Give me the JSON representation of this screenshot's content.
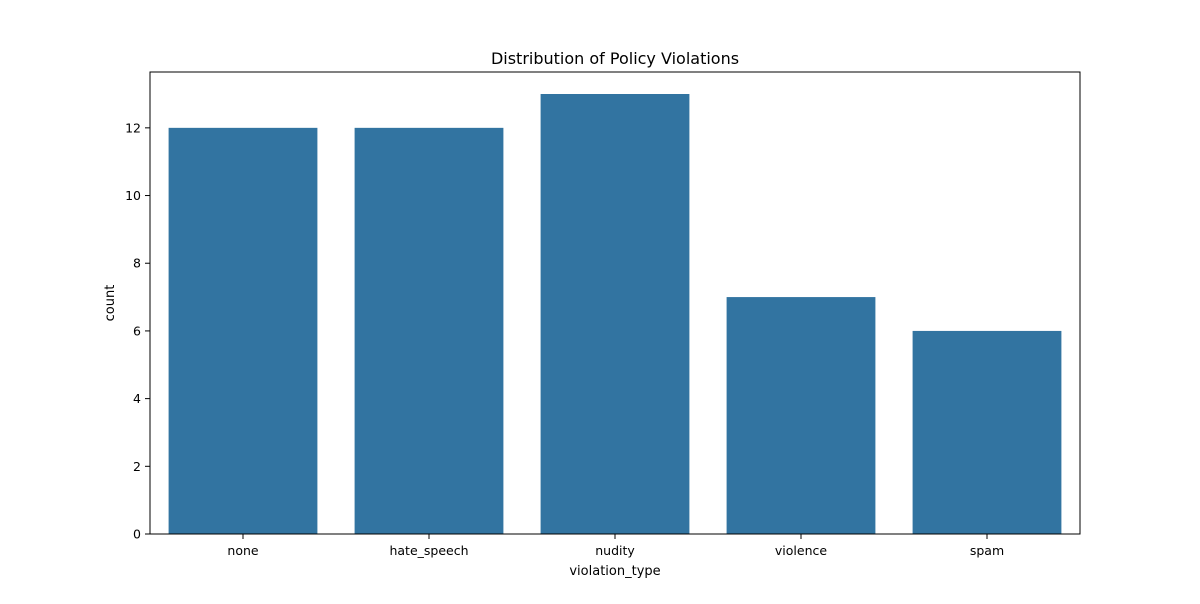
{
  "chart_data": {
    "type": "bar",
    "title": "Distribution of Policy Violations",
    "xlabel": "violation_type",
    "ylabel": "count",
    "categories": [
      "none",
      "hate_speech",
      "nudity",
      "violence",
      "spam"
    ],
    "values": [
      12,
      12,
      13,
      7,
      6
    ],
    "yticks": [
      "0",
      "2",
      "4",
      "6",
      "8",
      "10",
      "12"
    ],
    "ylim": [
      0,
      13.65
    ],
    "grid": false,
    "legend": "none",
    "bar_color": "#3274a1"
  }
}
